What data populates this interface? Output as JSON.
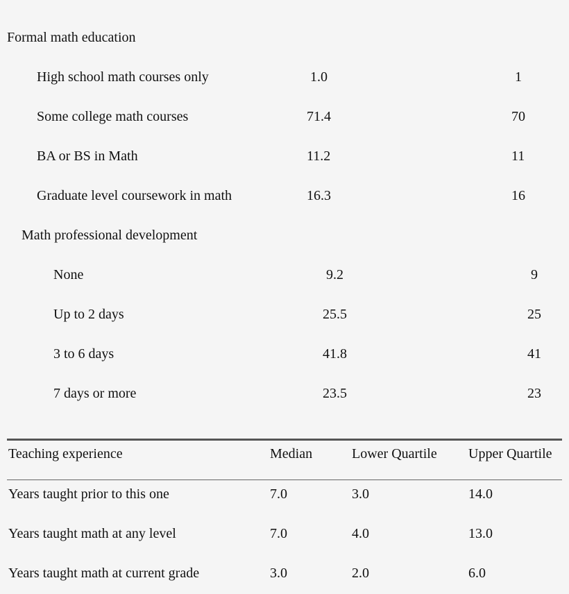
{
  "sections": [
    {
      "title": "Formal math education",
      "rows": [
        {
          "label": "High school math courses only",
          "value": "1.0",
          "count": "1"
        },
        {
          "label": "Some college math courses",
          "value": "71.4",
          "count": "70"
        },
        {
          "label": "BA or BS in Math",
          "value": "11.2",
          "count": "11"
        },
        {
          "label": "Graduate level coursework in math",
          "value": "16.3",
          "count": "16"
        }
      ]
    },
    {
      "title": "Math professional development",
      "rows": [
        {
          "label": "None",
          "value": "9.2",
          "count": "9"
        },
        {
          "label": "Up to 2 days",
          "value": "25.5",
          "count": "25"
        },
        {
          "label": "3 to 6 days",
          "value": "41.8",
          "count": "41"
        },
        {
          "label": "7 days or more",
          "value": "23.5",
          "count": "23"
        }
      ]
    }
  ],
  "experience": {
    "headers": [
      "Teaching experience",
      "Median",
      "Lower Quartile",
      "Upper Quartile"
    ],
    "rows": [
      [
        "Years taught prior to this one",
        "7.0",
        "3.0",
        "14.0"
      ],
      [
        "Years taught math at any level",
        "7.0",
        "4.0",
        "13.0"
      ],
      [
        "Years taught math at current grade",
        "3.0",
        "2.0",
        "6.0"
      ]
    ]
  }
}
